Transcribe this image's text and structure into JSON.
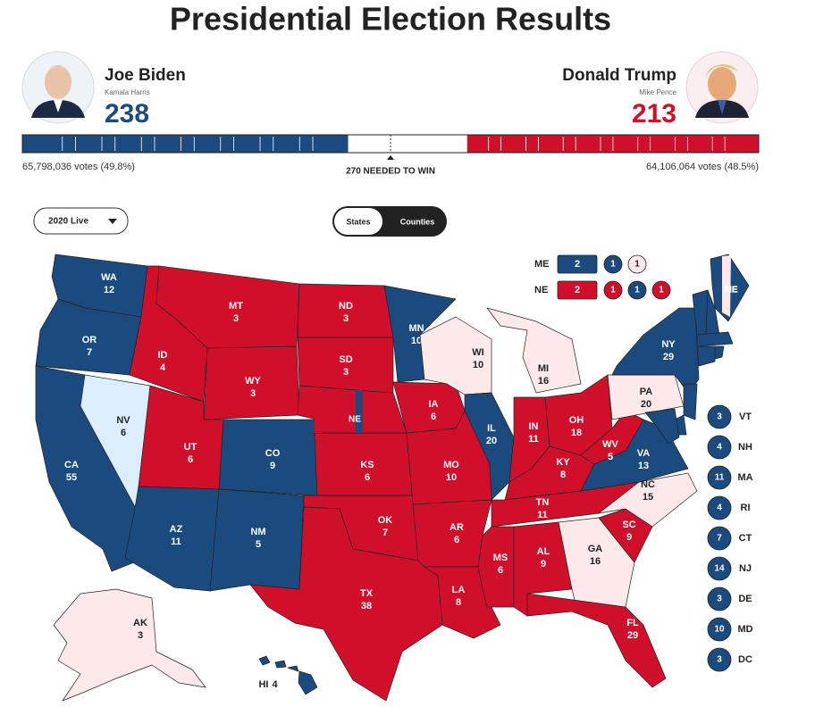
{
  "header": {
    "title": "Presidential Election Results"
  },
  "candidates": [
    {
      "name": "Joe Biden",
      "running_mate": "Kamala Harris",
      "electoral_votes": 238,
      "votes": "65,798,036 votes (49.8%)",
      "color": "#1b4a7e"
    },
    {
      "name": "Donald Trump",
      "running_mate": "Mike Pence",
      "electoral_votes": 213,
      "votes": "64,106,064 votes (48.5%)",
      "color": "#d0102b"
    }
  ],
  "needed_label": "270 NEEDED TO WIN",
  "controls": {
    "year_dropdown": "2020 Live",
    "toggle": [
      "States",
      "Counties"
    ]
  },
  "states": [
    {
      "abbr": "WA",
      "ev": 12,
      "color": "#1b4a7e"
    },
    {
      "abbr": "OR",
      "ev": 7,
      "color": "#1b4a7e"
    },
    {
      "abbr": "CA",
      "ev": 55,
      "color": "#1b4a7e"
    },
    {
      "abbr": "NV",
      "ev": 6,
      "color": "#dceefc"
    },
    {
      "abbr": "ID",
      "ev": 4,
      "color": "#d0102b"
    },
    {
      "abbr": "MT",
      "ev": 3,
      "color": "#d0102b"
    },
    {
      "abbr": "WY",
      "ev": 3,
      "color": "#d0102b"
    },
    {
      "abbr": "UT",
      "ev": 6,
      "color": "#d0102b"
    },
    {
      "abbr": "CO",
      "ev": 9,
      "color": "#1b4a7e"
    },
    {
      "abbr": "AZ",
      "ev": 11,
      "color": "#1b4a7e"
    },
    {
      "abbr": "NM",
      "ev": 5,
      "color": "#1b4a7e"
    },
    {
      "abbr": "ND",
      "ev": 3,
      "color": "#d0102b"
    },
    {
      "abbr": "SD",
      "ev": 3,
      "color": "#d0102b"
    },
    {
      "abbr": "KS",
      "ev": 6,
      "color": "#d0102b"
    },
    {
      "abbr": "OK",
      "ev": 7,
      "color": "#d0102b"
    },
    {
      "abbr": "TX",
      "ev": 38,
      "color": "#d0102b"
    },
    {
      "abbr": "MN",
      "ev": 10,
      "color": "#1b4a7e"
    },
    {
      "abbr": "IA",
      "ev": 6,
      "color": "#d0102b"
    },
    {
      "abbr": "MO",
      "ev": 10,
      "color": "#d0102b"
    },
    {
      "abbr": "AR",
      "ev": 6,
      "color": "#d0102b"
    },
    {
      "abbr": "LA",
      "ev": 8,
      "color": "#d0102b"
    },
    {
      "abbr": "WI",
      "ev": 10,
      "color": "#fde8ea"
    },
    {
      "abbr": "IL",
      "ev": 20,
      "color": "#1b4a7e"
    },
    {
      "abbr": "MI",
      "ev": 16,
      "color": "#fde8ea"
    },
    {
      "abbr": "IN",
      "ev": 11,
      "color": "#d0102b"
    },
    {
      "abbr": "OH",
      "ev": 18,
      "color": "#d0102b"
    },
    {
      "abbr": "KY",
      "ev": 8,
      "color": "#d0102b"
    },
    {
      "abbr": "TN",
      "ev": 11,
      "color": "#d0102b"
    },
    {
      "abbr": "MS",
      "ev": 6,
      "color": "#d0102b"
    },
    {
      "abbr": "AL",
      "ev": 9,
      "color": "#d0102b"
    },
    {
      "abbr": "GA",
      "ev": 16,
      "color": "#fde8ea"
    },
    {
      "abbr": "FL",
      "ev": 29,
      "color": "#d0102b"
    },
    {
      "abbr": "SC",
      "ev": 9,
      "color": "#d0102b"
    },
    {
      "abbr": "NC",
      "ev": 15,
      "color": "#fde8ea"
    },
    {
      "abbr": "VA",
      "ev": 13,
      "color": "#1b4a7e"
    },
    {
      "abbr": "WV",
      "ev": 5,
      "color": "#d0102b"
    },
    {
      "abbr": "PA",
      "ev": 20,
      "color": "#fde8ea"
    },
    {
      "abbr": "NY",
      "ev": 29,
      "color": "#1b4a7e"
    },
    {
      "abbr": "AK",
      "ev": 3,
      "color": "#fde8ea"
    },
    {
      "abbr": "HI",
      "ev": 4,
      "color": "#1b4a7e"
    }
  ],
  "split_states": [
    {
      "abbr": "ME",
      "color": "#1b4a7e",
      "districts": [
        {
          "ev": 2,
          "color": "#1b4a7e"
        },
        {
          "ev": 1,
          "color": "#1b4a7e"
        },
        {
          "ev": 1,
          "color": "#fde8ea"
        }
      ]
    },
    {
      "abbr": "NE",
      "color": "#d0102b",
      "districts": [
        {
          "ev": 2,
          "color": "#d0102b"
        },
        {
          "ev": 1,
          "color": "#d0102b"
        },
        {
          "ev": 1,
          "color": "#1b4a7e"
        },
        {
          "ev": 1,
          "color": "#d0102b"
        }
      ]
    }
  ],
  "small_states": [
    {
      "abbr": "VT",
      "ev": 3,
      "color": "#1b4a7e"
    },
    {
      "abbr": "NH",
      "ev": 4,
      "color": "#1b4a7e"
    },
    {
      "abbr": "MA",
      "ev": 11,
      "color": "#1b4a7e"
    },
    {
      "abbr": "RI",
      "ev": 4,
      "color": "#1b4a7e"
    },
    {
      "abbr": "CT",
      "ev": 7,
      "color": "#1b4a7e"
    },
    {
      "abbr": "NJ",
      "ev": 14,
      "color": "#1b4a7e"
    },
    {
      "abbr": "DE",
      "ev": 3,
      "color": "#1b4a7e"
    },
    {
      "abbr": "MD",
      "ev": 10,
      "color": "#1b4a7e"
    },
    {
      "abbr": "DC",
      "ev": 3,
      "color": "#1b4a7e"
    }
  ]
}
